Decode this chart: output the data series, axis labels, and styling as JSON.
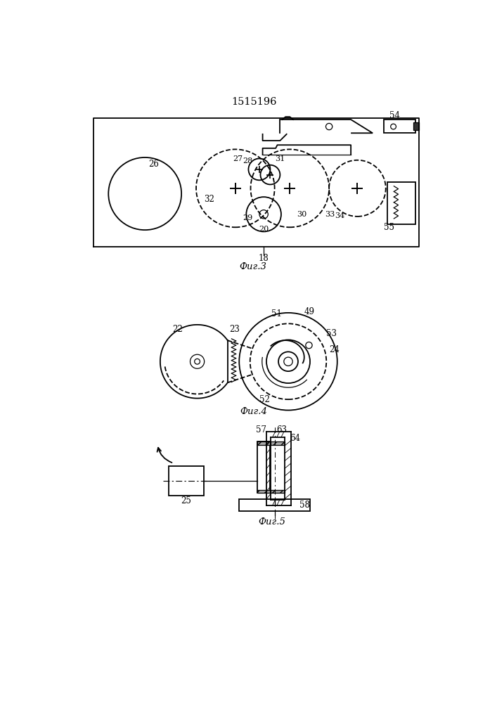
{
  "title": "1515196",
  "fig3_label": "Фиг.3",
  "fig4_label": "Фиг.4",
  "fig5_label": "Фиг.5",
  "bg_color": "#ffffff",
  "line_color": "#000000"
}
